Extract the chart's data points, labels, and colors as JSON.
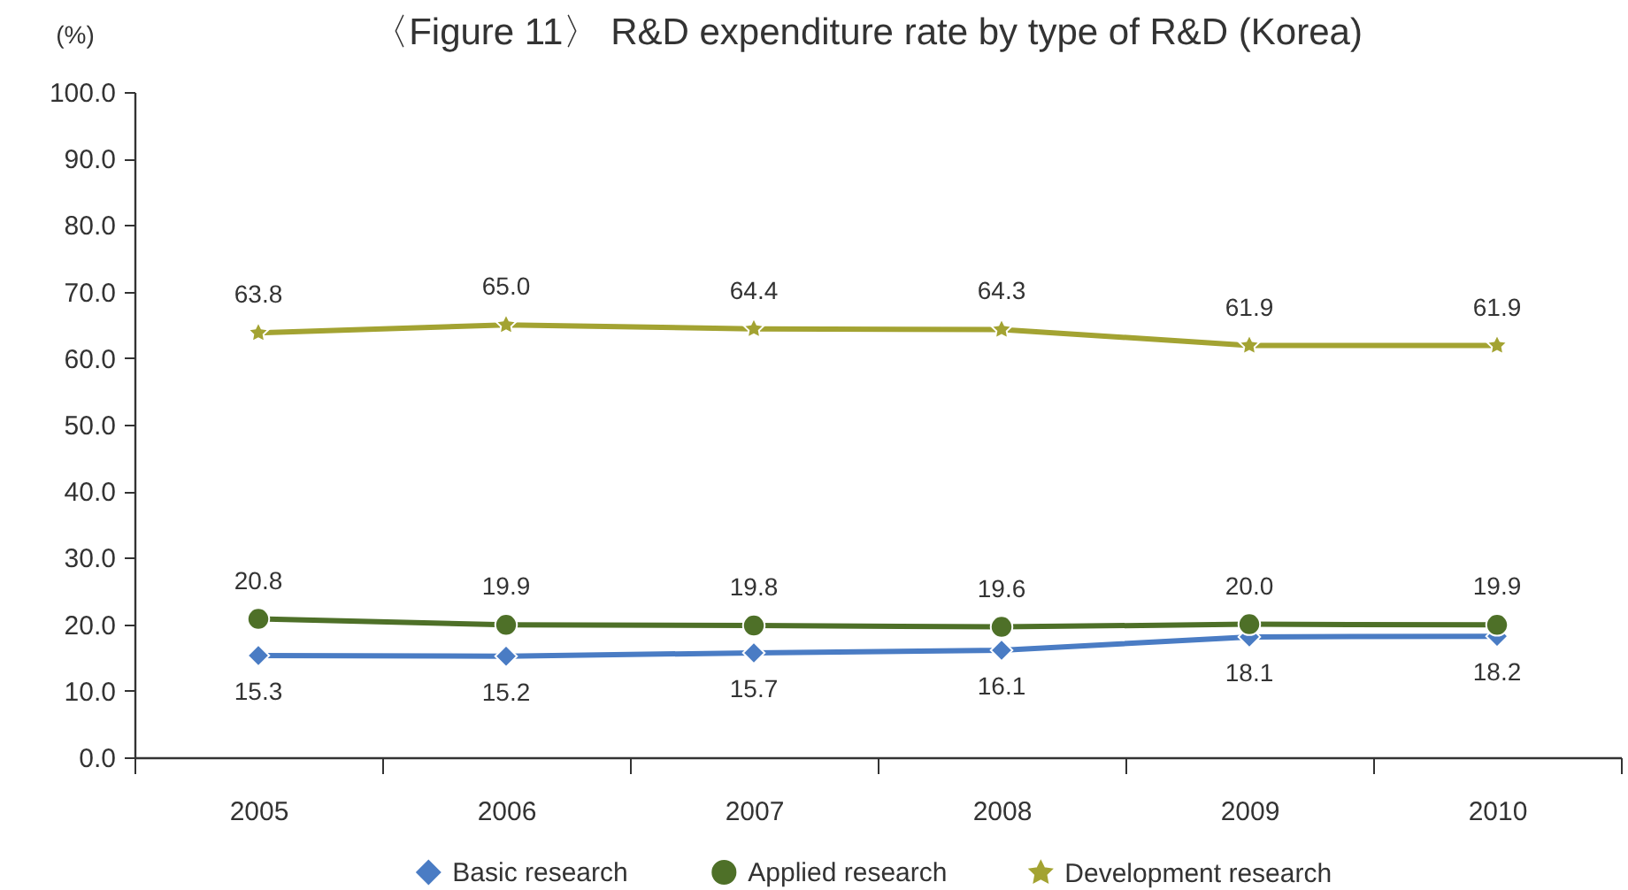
{
  "chart_data": {
    "type": "line",
    "title": "〈Figure 11〉 R&D expenditure rate by type of R&D (Korea)",
    "ylabel": "(%)",
    "categories": [
      "2005",
      "2006",
      "2007",
      "2008",
      "2009",
      "2010"
    ],
    "series": [
      {
        "name": "Basic research",
        "color": "#4a7cc4",
        "marker": "diamond",
        "values": [
          15.3,
          15.2,
          15.7,
          16.1,
          18.1,
          18.2
        ],
        "value_labels": [
          "15.3",
          "15.2",
          "15.7",
          "16.1",
          "18.1",
          "18.2"
        ]
      },
      {
        "name": "Applied research",
        "color": "#4e7028",
        "marker": "circle",
        "values": [
          20.8,
          19.9,
          19.8,
          19.6,
          20.0,
          19.9
        ],
        "value_labels": [
          "20.8",
          "19.9",
          "19.8",
          "19.6",
          "20.0",
          "19.9"
        ]
      },
      {
        "name": "Development research",
        "color": "#a3a332",
        "marker": "star",
        "values": [
          63.8,
          65.0,
          64.4,
          64.3,
          61.9,
          61.9
        ],
        "value_labels": [
          "63.8",
          "65.0",
          "64.4",
          "64.3",
          "61.9",
          "61.9"
        ]
      }
    ],
    "ylim": [
      0,
      100
    ],
    "yticks": [
      {
        "value": 0,
        "label": "0.0"
      },
      {
        "value": 10,
        "label": "10.0"
      },
      {
        "value": 20,
        "label": "20.0"
      },
      {
        "value": 30,
        "label": "30.0"
      },
      {
        "value": 40,
        "label": "40.0"
      },
      {
        "value": 50,
        "label": "50.0"
      },
      {
        "value": 60,
        "label": "60.0"
      },
      {
        "value": 70,
        "label": "70.0"
      },
      {
        "value": 80,
        "label": "80.0"
      },
      {
        "value": 90,
        "label": "90.0"
      },
      {
        "value": 100,
        "label": "100.0"
      }
    ],
    "grid": false,
    "legend": "bottom"
  }
}
